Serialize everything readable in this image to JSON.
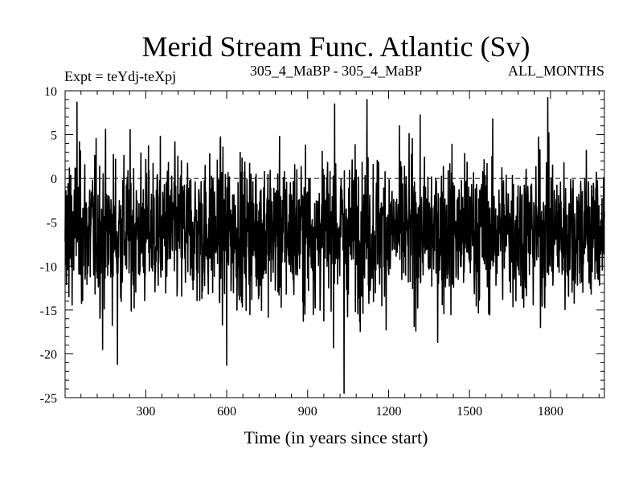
{
  "chart_data": {
    "type": "line",
    "title": "Merid Stream Func. Atlantic (Sv)",
    "subtitle_left": "Expt = teYdj-teXpj",
    "subtitle_center": "305_4_MaBP - 305_4_MaBP",
    "subtitle_right": "ALL_MONTHS",
    "xlabel": "Time (in years since start)",
    "ylabel": "",
    "xlim": [
      1,
      2000
    ],
    "ylim": [
      -25,
      10
    ],
    "x_ticks": [
      300,
      600,
      900,
      1200,
      1500,
      1800
    ],
    "y_ticks": [
      10,
      5,
      0,
      -5,
      -10,
      -15,
      -20,
      -25
    ],
    "reference_line": {
      "y": 0,
      "style": "dashed"
    },
    "grid": false,
    "legend": "none",
    "series": [
      {
        "color": "#000000",
        "x_start": 1,
        "x_step": 1,
        "n_points": 2000,
        "mean": -6.0,
        "values_sample": [
          -7.2,
          -3.1,
          -9.8,
          -1.4,
          -6.5,
          -12.1,
          -4.8,
          -2.0,
          -8.7,
          -5.3,
          -10.4,
          -0.6,
          -6.9,
          -3.8,
          -13.5,
          -7.7,
          1.2,
          -5.9,
          -9.1,
          -4.2
        ],
        "extremes": [
          {
            "x": 45,
            "y": 8.7
          },
          {
            "x": 140,
            "y": -19.5
          },
          {
            "x": 195,
            "y": -21.2
          },
          {
            "x": 600,
            "y": -21.3
          },
          {
            "x": 1000,
            "y": 8.5
          },
          {
            "x": 1035,
            "y": -24.5
          },
          {
            "x": 1120,
            "y": 9.0
          },
          {
            "x": 1790,
            "y": 9.2
          }
        ]
      }
    ]
  }
}
